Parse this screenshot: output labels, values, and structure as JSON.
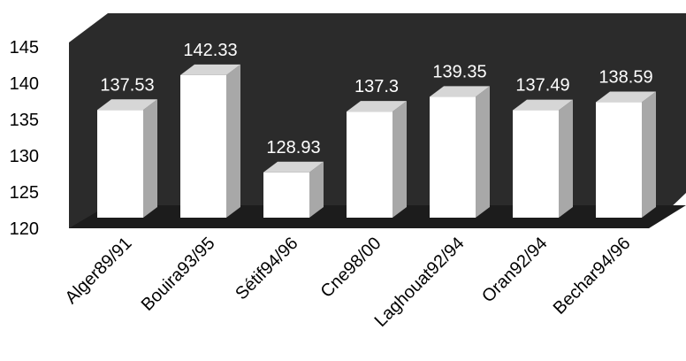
{
  "chart_data": {
    "type": "bar",
    "style": "3d-column",
    "title": "",
    "xlabel": "",
    "ylabel": "",
    "categories": [
      "Alger89/91",
      "Bouira93/95",
      "Sétif94/96",
      "Cne98/00",
      "Laghouat92/94",
      "Oran92/94",
      "Bechar94/96"
    ],
    "values": [
      137.53,
      142.33,
      128.93,
      137.3,
      139.35,
      137.49,
      138.59
    ],
    "value_labels": [
      "137.53",
      "142.33",
      "128.93",
      "137.3",
      "139.35",
      "137.49",
      "138.59"
    ],
    "ylim": [
      120,
      145
    ],
    "yticks": [
      "120",
      "125",
      "130",
      "135",
      "140",
      "145"
    ],
    "grid": false,
    "legend": "none",
    "colors": {
      "wall": "#2b2b2b",
      "floor": "#1c1c1c",
      "bar_front": "#ffffff",
      "bar_side": "#a8a8a8",
      "bar_top": "#d6d6d6",
      "data_label": "#ffffff"
    }
  }
}
